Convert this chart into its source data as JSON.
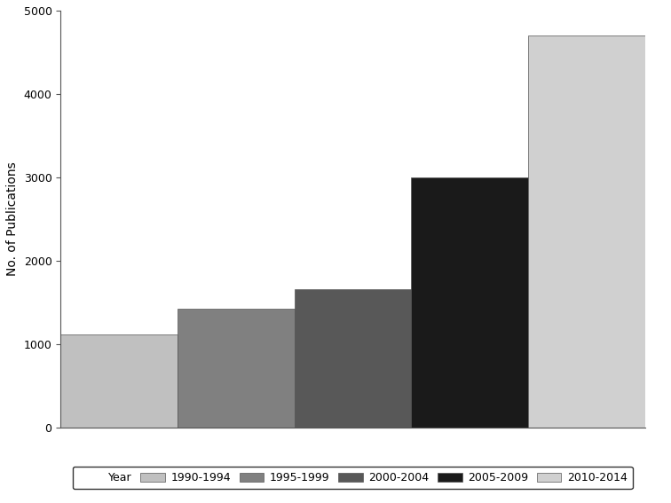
{
  "categories": [
    "1990-1994",
    "1995-1999",
    "2000-2004",
    "2005-2009",
    "2010-2014"
  ],
  "values": [
    1120,
    1430,
    1660,
    3000,
    4700
  ],
  "bar_colors": [
    "#c0c0c0",
    "#808080",
    "#585858",
    "#1a1a1a",
    "#d0d0d0"
  ],
  "ylabel": "No. of Publications",
  "ylim": [
    0,
    5000
  ],
  "yticks": [
    0,
    1000,
    2000,
    3000,
    4000,
    5000
  ],
  "legend_label": "Year",
  "background_color": "#ffffff",
  "edge_color": "#555555"
}
